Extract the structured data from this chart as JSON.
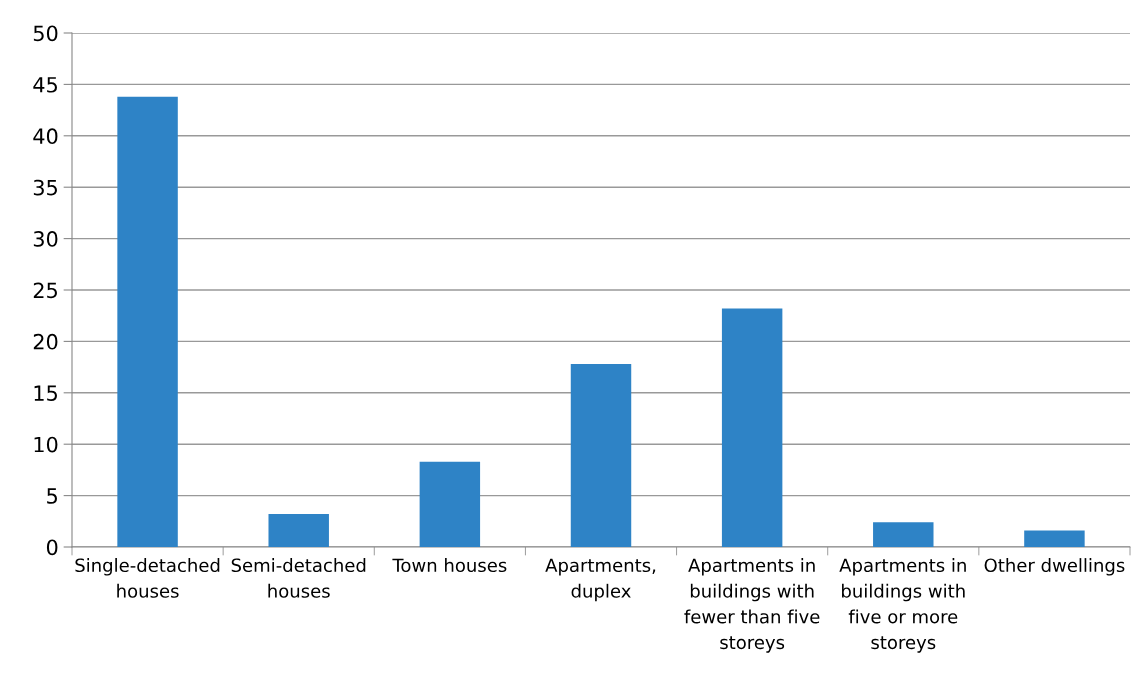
{
  "chart_data": {
    "type": "bar",
    "categories": [
      "Single-detached\nhouses",
      "Semi-detached\nhouses",
      "Town houses",
      "Apartments,\nduplex",
      "Apartments in\nbuildings with\nfewer than five\nstoreys",
      "Apartments in\nbuildings with\nfive or more\nstoreys",
      "Other dwellings"
    ],
    "values": [
      43.8,
      3.2,
      8.3,
      17.8,
      23.2,
      2.4,
      1.6
    ],
    "color": "#2e83c6",
    "ylim": [
      0,
      50
    ],
    "yticks": [
      0,
      5,
      10,
      15,
      20,
      25,
      30,
      35,
      40,
      45,
      50
    ],
    "grid": "y"
  }
}
